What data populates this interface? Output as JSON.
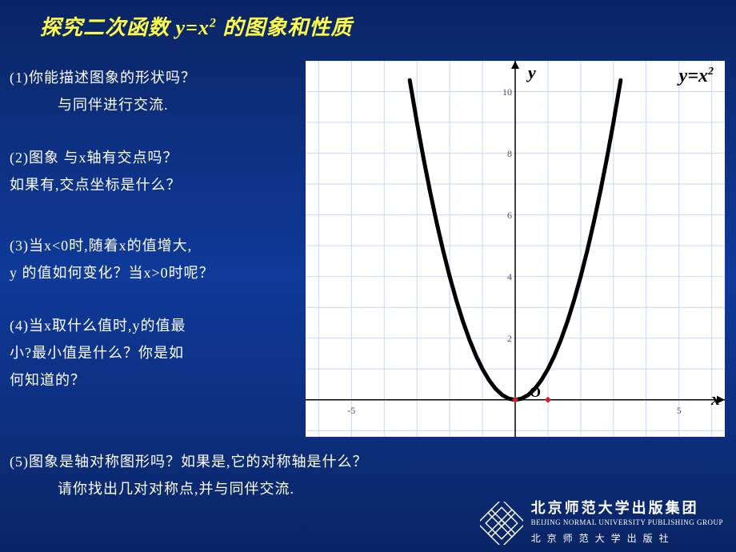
{
  "title_pre": "探究二次函数  ",
  "title_eq_base": "y=x",
  "title_eq_exp": "2",
  "title_post": " 的图象和性质",
  "q1_l1": "(1)你能描述图象的形状吗？",
  "q1_l2": "与同伴进行交流.",
  "q2_l1": "(2)图象 与x轴有交点吗？",
  "q2_l2": "如果有,交点坐标是什么？",
  "q3_l1": "(3)当x<0时,随着x的值增大,",
  "q3_l2": "y 的值如何变化？当x>0时呢？",
  "q4_l1": "(4)当x取什么值时,y的值最",
  "q4_l2": "小?最小值是什么？你是如",
  "q4_l3": "何知道的？",
  "q5_l1": "(5)图象是轴对称图形吗？如果是,它的对称轴是什么？",
  "q5_l2": "请你找出几对对称点,并与同伴交流.",
  "chart": {
    "type": "line",
    "equation_base": "y=x",
    "equation_exp": "2",
    "y_axis_label": "y",
    "x_axis_label": "x",
    "origin_label": "O",
    "xlim": [
      -6.4,
      6.4
    ],
    "ylim": [
      -1.2,
      11
    ],
    "x_ticks": [
      -5,
      5
    ],
    "y_ticks": [
      2,
      4,
      6,
      8,
      10
    ],
    "grid_minor_step": 1,
    "grid_color": "#c8d8f0",
    "axis_color": "#000000",
    "curve_color": "#000000",
    "curve_width": 5,
    "background_color": "#ffffff",
    "markers": [
      {
        "x": 0,
        "y": 0,
        "color": "#d02020"
      },
      {
        "x": 1,
        "y": 0,
        "color": "#d02020"
      }
    ],
    "curve_points": [
      [
        -3.22,
        10.37
      ],
      [
        -3.0,
        9.0
      ],
      [
        -2.8,
        7.84
      ],
      [
        -2.6,
        6.76
      ],
      [
        -2.4,
        5.76
      ],
      [
        -2.2,
        4.84
      ],
      [
        -2.0,
        4.0
      ],
      [
        -1.8,
        3.24
      ],
      [
        -1.6,
        2.56
      ],
      [
        -1.4,
        1.96
      ],
      [
        -1.2,
        1.44
      ],
      [
        -1.0,
        1.0
      ],
      [
        -0.8,
        0.64
      ],
      [
        -0.6,
        0.36
      ],
      [
        -0.4,
        0.16
      ],
      [
        -0.2,
        0.04
      ],
      [
        0.0,
        0.0
      ],
      [
        0.2,
        0.04
      ],
      [
        0.4,
        0.16
      ],
      [
        0.6,
        0.36
      ],
      [
        0.8,
        0.64
      ],
      [
        1.0,
        1.0
      ],
      [
        1.2,
        1.44
      ],
      [
        1.4,
        1.96
      ],
      [
        1.6,
        2.56
      ],
      [
        1.8,
        3.24
      ],
      [
        2.0,
        4.0
      ],
      [
        2.2,
        4.84
      ],
      [
        2.4,
        5.76
      ],
      [
        2.6,
        6.76
      ],
      [
        2.8,
        7.84
      ],
      [
        3.0,
        9.0
      ],
      [
        3.22,
        10.37
      ]
    ]
  },
  "logo": {
    "cn": "北京师范大学出版集团",
    "en": "BEIJING NORMAL UNIVERSITY PUBLISHING GROUP",
    "sub": "北京师范大学出版社",
    "colors": {
      "stroke": "#ffffff",
      "fill": "#0f3a9a"
    }
  }
}
